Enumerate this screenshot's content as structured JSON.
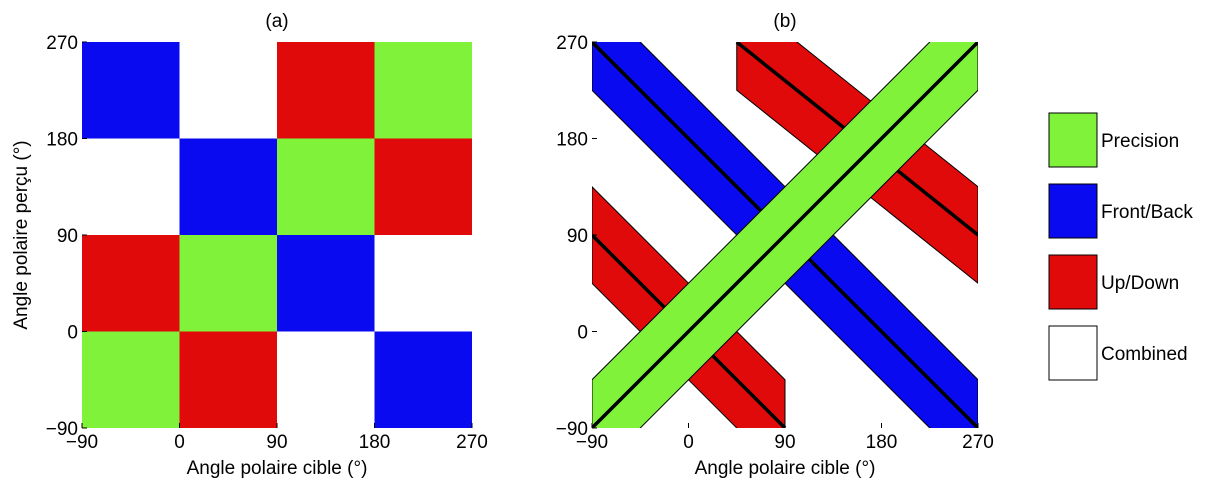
{
  "colors": {
    "precision": "#80f23a",
    "frontback": "#0a0af0",
    "updown": "#e00a0a",
    "combined": "#ffffff",
    "line": "#000000"
  },
  "chart_data": [
    {
      "type": "heatmap",
      "title": "(a)",
      "xlabel": "Angle polaire cible (°)",
      "ylabel": "Angle polaire perçu (°)",
      "xlim": [
        -90,
        270
      ],
      "ylim": [
        -90,
        270
      ],
      "xticks": [
        -90,
        0,
        90,
        180,
        270
      ],
      "yticks": [
        -90,
        0,
        90,
        180,
        270
      ],
      "xtick_labels": [
        "−90",
        "0",
        "90",
        "180",
        "270"
      ],
      "ytick_labels": [
        "−90",
        "0",
        "90",
        "180",
        "270"
      ],
      "x_bins": [
        [
          -90,
          0
        ],
        [
          0,
          90
        ],
        [
          90,
          180
        ],
        [
          180,
          270
        ]
      ],
      "y_bins": [
        [
          180,
          270
        ],
        [
          90,
          180
        ],
        [
          0,
          90
        ],
        [
          -90,
          0
        ]
      ],
      "cells": [
        [
          "frontback",
          "combined",
          "updown",
          "precision"
        ],
        [
          "combined",
          "frontback",
          "precision",
          "updown"
        ],
        [
          "updown",
          "precision",
          "frontback",
          "combined"
        ],
        [
          "precision",
          "updown",
          "combined",
          "frontback"
        ]
      ]
    },
    {
      "type": "area",
      "title": "(b)",
      "xlabel": "Angle polaire cible (°)",
      "xlim": [
        -90,
        270
      ],
      "ylim": [
        -90,
        270
      ],
      "xticks": [
        -90,
        0,
        90,
        180,
        270
      ],
      "yticks": [
        -90,
        0,
        90,
        180,
        270
      ],
      "xtick_labels": [
        "−90",
        "0",
        "90",
        "180",
        "270"
      ],
      "ytick_labels": [
        "−90",
        "0",
        "90",
        "180",
        "270"
      ],
      "bands": [
        {
          "category": "updown",
          "center": [
            [
              45,
              270
            ],
            [
              270,
              90
            ]
          ],
          "halfwidth": 45
        },
        {
          "category": "updown",
          "center": [
            [
              -90,
              90
            ],
            [
              90,
              -90
            ]
          ],
          "halfwidth": 45
        },
        {
          "category": "frontback",
          "center": [
            [
              -90,
              270
            ],
            [
              270,
              -90
            ]
          ],
          "halfwidth": 45
        },
        {
          "category": "precision",
          "center": [
            [
              -90,
              -90
            ],
            [
              270,
              270
            ]
          ],
          "halfwidth": 45
        }
      ]
    }
  ],
  "legend": [
    {
      "key": "precision",
      "label": "Precision"
    },
    {
      "key": "frontback",
      "label": "Front/Back"
    },
    {
      "key": "updown",
      "label": "Up/Down"
    },
    {
      "key": "combined",
      "label": "Combined"
    }
  ]
}
